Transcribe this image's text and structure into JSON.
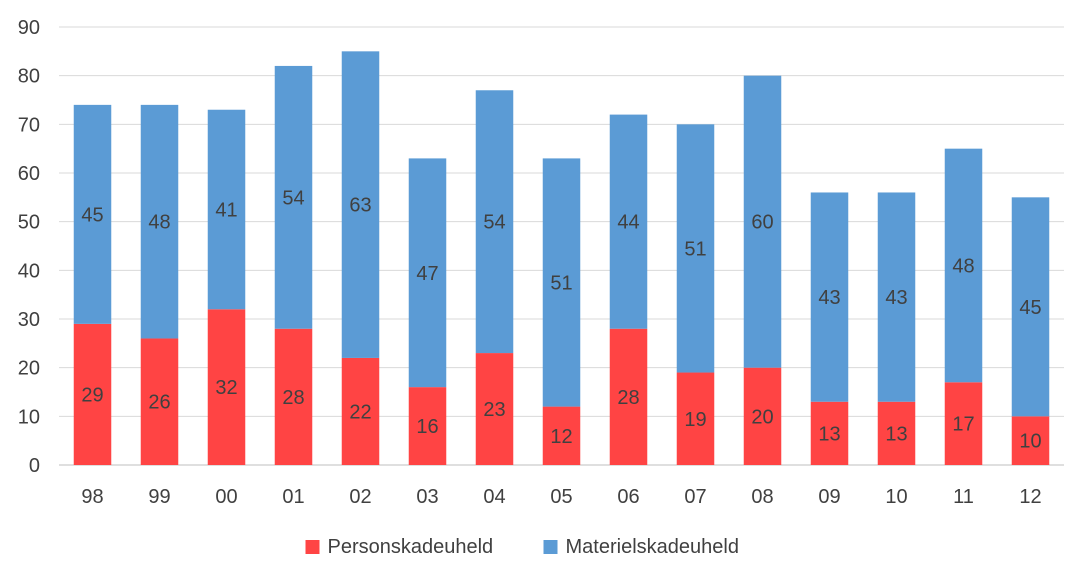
{
  "chart_data": {
    "type": "bar",
    "stacked": true,
    "categories": [
      "98",
      "99",
      "00",
      "01",
      "02",
      "03",
      "04",
      "05",
      "06",
      "07",
      "08",
      "09",
      "10",
      "11",
      "12"
    ],
    "series": [
      {
        "name": "Personskadeuheld",
        "color": "#ff4444",
        "values": [
          29,
          26,
          32,
          28,
          22,
          16,
          23,
          12,
          28,
          19,
          20,
          13,
          13,
          17,
          10
        ]
      },
      {
        "name": "Materielskadeuheld",
        "color": "#5b9bd5",
        "values": [
          45,
          48,
          41,
          54,
          63,
          47,
          54,
          51,
          44,
          51,
          60,
          43,
          43,
          48,
          45
        ]
      }
    ],
    "ylim": [
      0,
      90
    ],
    "yticks": [
      0,
      10,
      20,
      30,
      40,
      50,
      60,
      70,
      80,
      90
    ],
    "grid": true,
    "legend_position": "bottom"
  }
}
